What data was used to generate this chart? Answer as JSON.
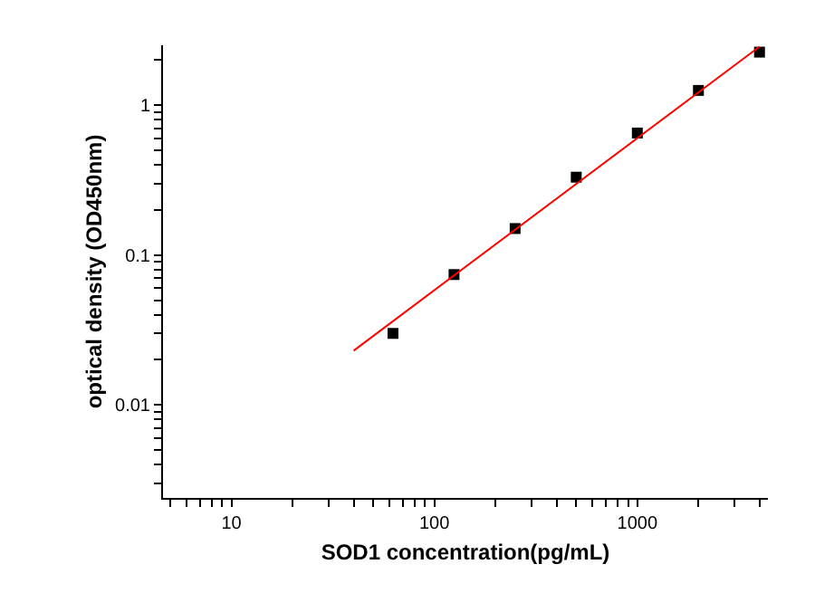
{
  "chart_data": {
    "type": "scatter",
    "xlabel": "SOD1 concentration(pg/mL)",
    "ylabel": "optical density (OD450nm)",
    "log": "xy",
    "xlim": [
      4.6,
      4400
    ],
    "ylim": [
      0.0024,
      2.5
    ],
    "xticks": [
      {
        "value": 5,
        "label": null
      },
      {
        "value": 6,
        "label": null
      },
      {
        "value": 7,
        "label": null
      },
      {
        "value": 8,
        "label": null
      },
      {
        "value": 9,
        "label": null
      },
      10,
      {
        "value": 20,
        "label": null
      },
      {
        "value": 30,
        "label": null
      },
      {
        "value": 40,
        "label": null
      },
      {
        "value": 50,
        "label": null
      },
      {
        "value": 60,
        "label": null
      },
      {
        "value": 70,
        "label": null
      },
      {
        "value": 80,
        "label": null
      },
      {
        "value": 90,
        "label": null
      },
      100,
      {
        "value": 200,
        "label": null
      },
      {
        "value": 300,
        "label": null
      },
      {
        "value": 400,
        "label": null
      },
      {
        "value": 500,
        "label": null
      },
      {
        "value": 600,
        "label": null
      },
      {
        "value": 700,
        "label": null
      },
      {
        "value": 800,
        "label": null
      },
      {
        "value": 900,
        "label": null
      },
      1000,
      {
        "value": 2000,
        "label": null
      },
      {
        "value": 3000,
        "label": null
      },
      {
        "value": 4000,
        "label": null
      }
    ],
    "yticks": [
      {
        "value": 0.003,
        "label": null
      },
      {
        "value": 0.004,
        "label": null
      },
      {
        "value": 0.005,
        "label": null
      },
      {
        "value": 0.006,
        "label": null
      },
      {
        "value": 0.007,
        "label": null
      },
      {
        "value": 0.008,
        "label": null
      },
      {
        "value": 0.009,
        "label": null
      },
      0.01,
      {
        "value": 0.02,
        "label": null
      },
      {
        "value": 0.03,
        "label": null
      },
      {
        "value": 0.04,
        "label": null
      },
      {
        "value": 0.05,
        "label": null
      },
      {
        "value": 0.06,
        "label": null
      },
      {
        "value": 0.07,
        "label": null
      },
      {
        "value": 0.08,
        "label": null
      },
      {
        "value": 0.09,
        "label": null
      },
      0.1,
      {
        "value": 0.2,
        "label": null
      },
      {
        "value": 0.3,
        "label": null
      },
      {
        "value": 0.4,
        "label": null
      },
      {
        "value": 0.5,
        "label": null
      },
      {
        "value": 0.6,
        "label": null
      },
      {
        "value": 0.7,
        "label": null
      },
      {
        "value": 0.8,
        "label": null
      },
      {
        "value": 0.9,
        "label": null
      },
      1,
      {
        "value": 2,
        "label": null
      }
    ],
    "series": [
      {
        "marker": "square",
        "color": "#000000",
        "x": [
          62.5,
          125,
          250,
          500,
          1000,
          2000,
          4000
        ],
        "values": [
          0.03,
          0.074,
          0.15,
          0.33,
          0.65,
          1.25,
          2.25
        ]
      },
      {
        "type": "line",
        "marker": "none",
        "color": "#ff0000",
        "x": [
          40,
          4000
        ],
        "values": [
          0.023,
          2.45
        ]
      }
    ]
  }
}
